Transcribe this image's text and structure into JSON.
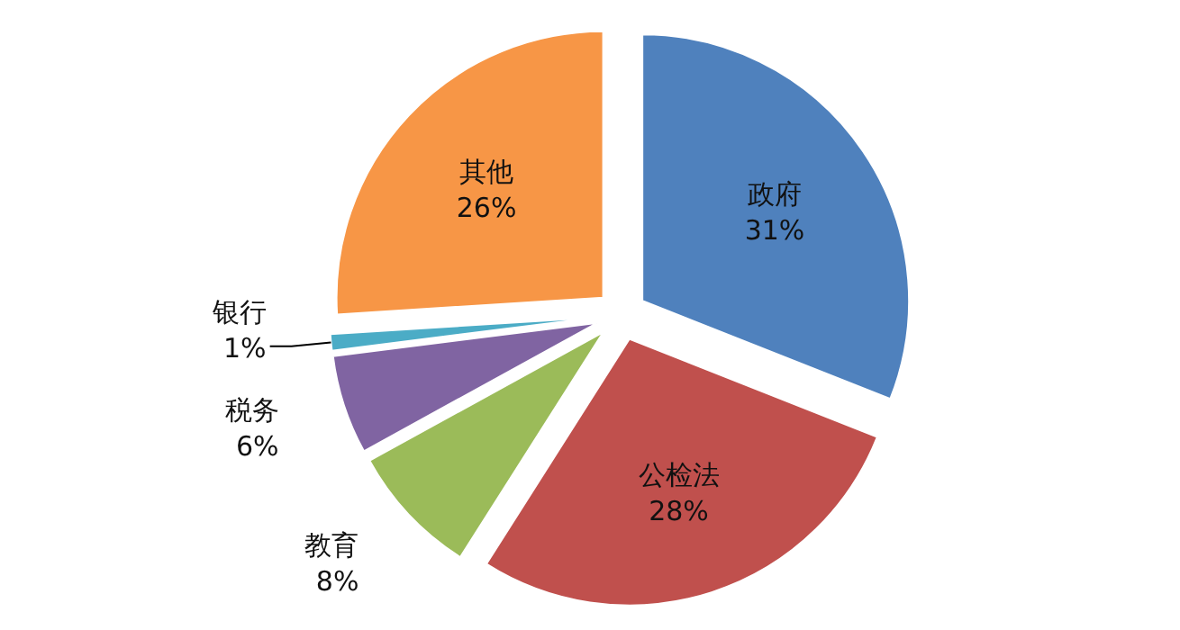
{
  "chart_data": {
    "type": "pie",
    "categories": [
      "政府",
      "公检法",
      "教育",
      "税务",
      "银行",
      "其他"
    ],
    "values": [
      31,
      28,
      8,
      6,
      1,
      26
    ],
    "colors": [
      "#4f81bd",
      "#c0504d",
      "#9bbb59",
      "#8064a2",
      "#4bacc6",
      "#f79646"
    ],
    "value_labels": [
      "31%",
      "28%",
      "8%",
      "6%",
      "1%",
      "26%"
    ]
  }
}
